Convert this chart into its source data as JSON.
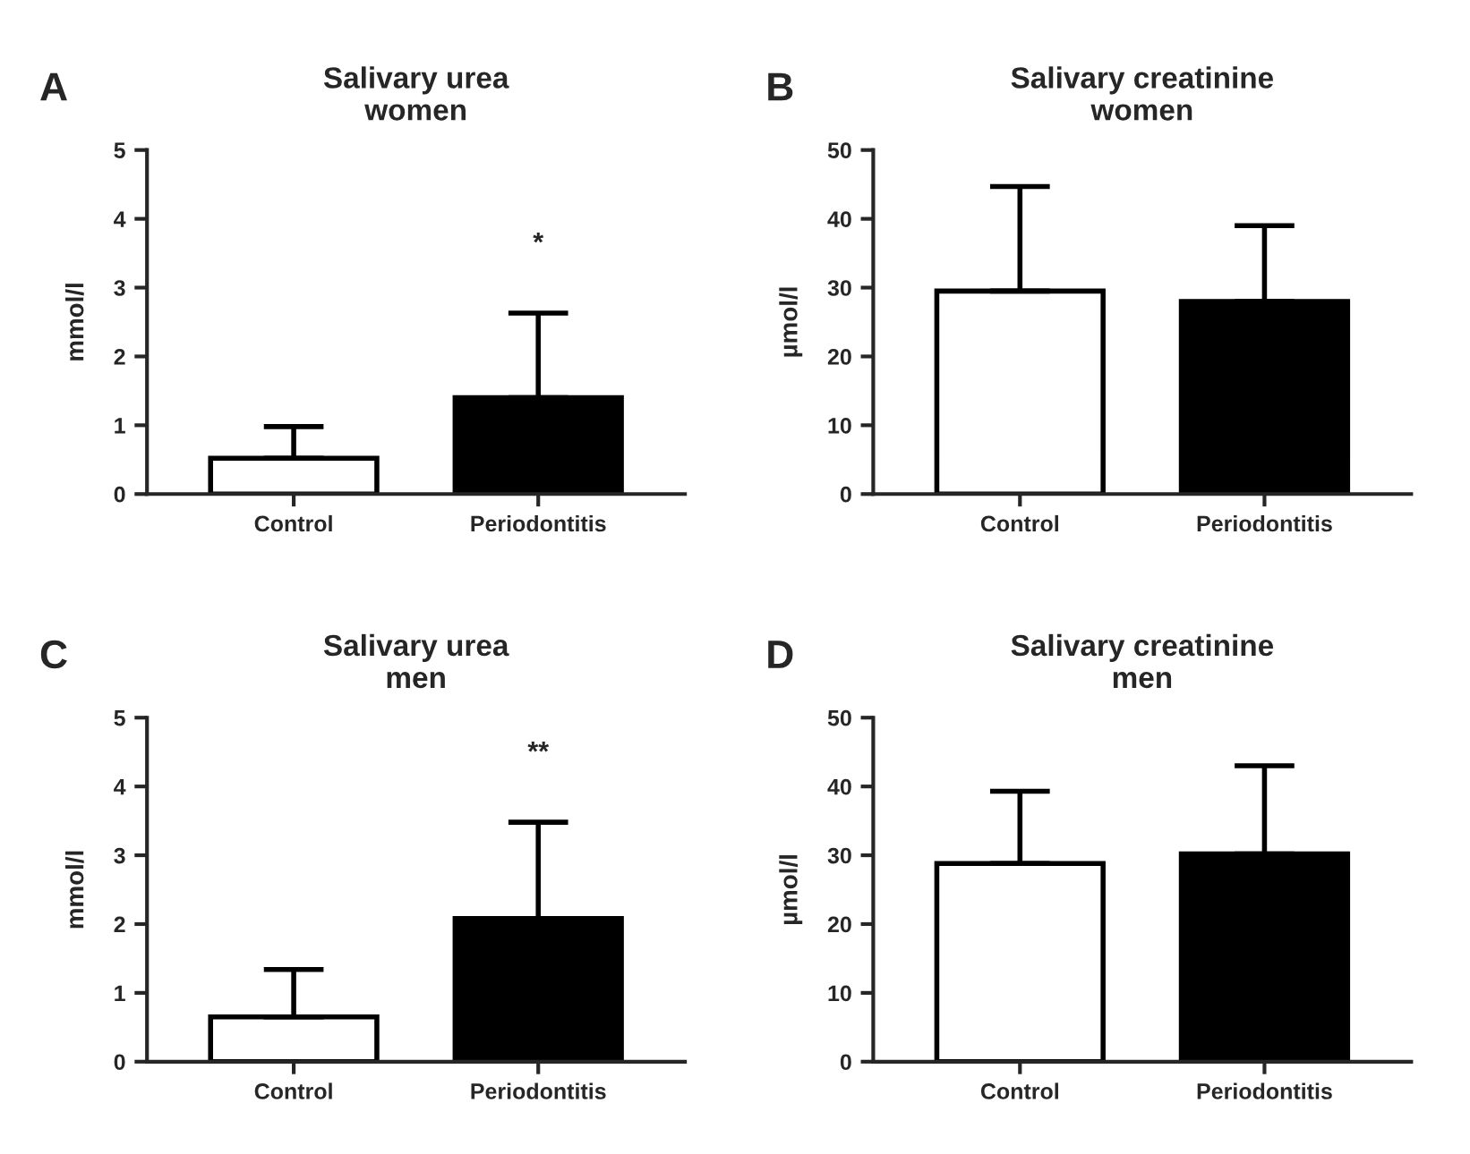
{
  "chart_data": [
    {
      "type": "bar",
      "title": "Salivary urea\nwomen",
      "ylabel": "mmol/l",
      "categories": [
        "Control",
        "Periodontitis"
      ],
      "values": [
        0.52,
        1.4
      ],
      "errors": [
        [
          0.52,
          0.98
        ],
        [
          1.4,
          2.63
        ]
      ],
      "colors": [
        "#ffffff",
        "#000000"
      ],
      "ylim": [
        0,
        5
      ],
      "yticks": [
        0,
        1,
        2,
        3,
        4,
        5
      ],
      "grid": false,
      "annotations": [
        "A",
        "*"
      ]
    },
    {
      "type": "bar",
      "title": "Salivary creatinine\nwomen",
      "ylabel": "µmol/l",
      "categories": [
        "Control",
        "Periodontitis"
      ],
      "values": [
        29.5,
        28
      ],
      "errors": [
        [
          29.5,
          44.7
        ],
        [
          28,
          39
        ]
      ],
      "colors": [
        "#ffffff",
        "#000000"
      ],
      "ylim": [
        0,
        50
      ],
      "yticks": [
        0,
        10,
        20,
        30,
        40,
        50
      ],
      "grid": false,
      "annotations": [
        "B"
      ]
    },
    {
      "type": "bar",
      "title": "Salivary urea\nmen",
      "ylabel": "mmol/l",
      "categories": [
        "Control",
        "Periodontitis"
      ],
      "values": [
        0.65,
        2.08
      ],
      "errors": [
        [
          0.65,
          1.34
        ],
        [
          2.08,
          3.48
        ]
      ],
      "colors": [
        "#ffffff",
        "#000000"
      ],
      "ylim": [
        0,
        5
      ],
      "yticks": [
        0,
        1,
        2,
        3,
        4,
        5
      ],
      "grid": false,
      "annotations": [
        "C",
        "**"
      ]
    },
    {
      "type": "bar",
      "title": "Salivary creatinine\nmen",
      "ylabel": "µmol/l",
      "categories": [
        "Control",
        "Periodontitis"
      ],
      "values": [
        28.8,
        30.2
      ],
      "errors": [
        [
          28.8,
          39.3
        ],
        [
          30.2,
          43
        ]
      ],
      "colors": [
        "#ffffff",
        "#000000"
      ],
      "ylim": [
        0,
        50
      ],
      "yticks": [
        0,
        10,
        20,
        30,
        40,
        50
      ],
      "grid": false,
      "annotations": [
        "D"
      ]
    }
  ]
}
